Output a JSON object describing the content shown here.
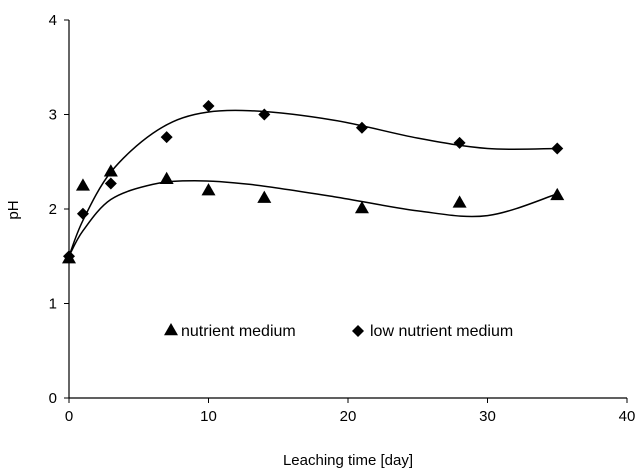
{
  "chart_data": {
    "type": "scatter",
    "title": "",
    "xlabel": "Leaching time [day]",
    "ylabel": "pH",
    "xlim": [
      0,
      40
    ],
    "ylim": [
      0,
      4
    ],
    "xticks": [
      0,
      10,
      20,
      30,
      40
    ],
    "yticks": [
      0,
      1,
      2,
      3,
      4
    ],
    "grid": false,
    "legend_position": "inside-bottom",
    "trendline": "polynomial",
    "series": [
      {
        "name": "nutrient medium",
        "marker": "triangle",
        "color": "#000000",
        "x": [
          0,
          1,
          3,
          7,
          10,
          14,
          21,
          28,
          35
        ],
        "y": [
          1.48,
          2.25,
          2.4,
          2.32,
          2.2,
          2.12,
          2.01,
          2.07,
          2.15
        ],
        "trend_y": [
          1.5,
          1.77,
          2.1,
          2.26,
          2.3,
          2.26,
          2.13,
          1.98,
          1.93,
          2.16
        ]
      },
      {
        "name": "low nutrient medium",
        "marker": "diamond",
        "color": "#000000",
        "x": [
          0,
          1,
          3,
          7,
          10,
          14,
          21,
          28,
          35
        ],
        "y": [
          1.5,
          1.95,
          2.27,
          2.76,
          3.09,
          3.0,
          2.86,
          2.7,
          2.64
        ],
        "trend_y": [
          1.5,
          1.88,
          2.39,
          2.8,
          3.0,
          3.04,
          2.94,
          2.75,
          2.64,
          2.64
        ]
      }
    ],
    "trend_x": [
      0,
      1,
      3,
      6,
      9,
      13,
      19,
      25,
      30,
      35
    ]
  }
}
